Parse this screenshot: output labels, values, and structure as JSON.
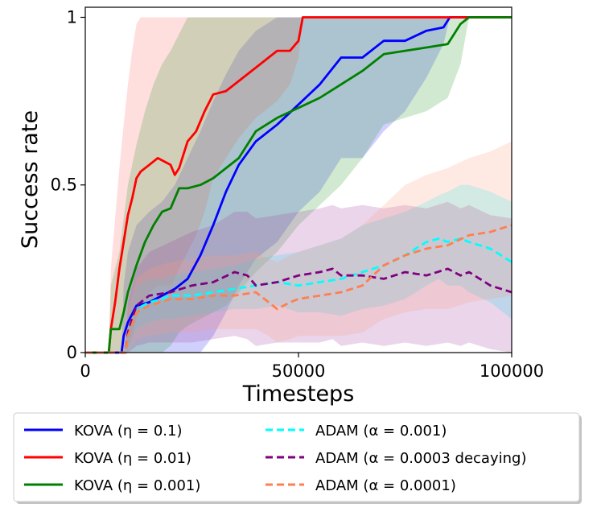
{
  "chart_data": {
    "type": "line",
    "title": "",
    "xlabel": "Timesteps",
    "ylabel": "Success rate",
    "xlim": [
      0,
      100000
    ],
    "ylim": [
      0,
      1.03
    ],
    "xticks": [
      0,
      50000,
      100000
    ],
    "xtick_labels": [
      "0",
      "50000",
      "100000"
    ],
    "yticks": [
      0,
      0.5,
      1
    ],
    "ytick_labels": [
      "0",
      "0.5",
      "1"
    ],
    "grid": false,
    "legend_position": "below",
    "series": [
      {
        "name": "KOVA (η = 0.1)",
        "style": "solid",
        "color": "#0000ff",
        "band_color": "#2a2af5",
        "x": [
          0,
          8500,
          9000,
          10000,
          12000,
          15000,
          18000,
          21000,
          24000,
          27000,
          30000,
          33000,
          36000,
          40000,
          45000,
          50000,
          55000,
          60000,
          65000,
          70000,
          75000,
          80000,
          84000,
          85500,
          88000,
          100000
        ],
        "y": [
          0,
          0,
          0.05,
          0.09,
          0.14,
          0.15,
          0.17,
          0.19,
          0.22,
          0.29,
          0.38,
          0.48,
          0.56,
          0.63,
          0.68,
          0.74,
          0.8,
          0.88,
          0.88,
          0.93,
          0.93,
          0.96,
          0.97,
          1.0,
          1.0,
          1.0
        ],
        "upper": [
          0,
          0,
          0.2,
          0.3,
          0.38,
          0.42,
          0.45,
          0.5,
          0.58,
          0.66,
          0.75,
          0.83,
          0.9,
          0.96,
          1.0,
          1.0,
          1.0,
          1.0,
          1.0,
          1.0,
          1.0,
          1.0,
          1.0,
          1.0,
          1.0,
          1.0
        ],
        "lower": [
          0,
          0,
          0,
          0,
          0,
          0,
          0,
          0,
          0,
          0,
          0.05,
          0.12,
          0.2,
          0.28,
          0.33,
          0.42,
          0.48,
          0.58,
          0.58,
          0.66,
          0.72,
          0.82,
          0.92,
          1.0,
          1.0,
          1.0
        ]
      },
      {
        "name": "KOVA (η = 0.01)",
        "style": "solid",
        "color": "#ff0000",
        "band_color": "#ff6b6b",
        "x": [
          0,
          5500,
          6000,
          7000,
          8000,
          9000,
          10000,
          11000,
          12000,
          13000,
          15000,
          17000,
          20000,
          21000,
          22000,
          24000,
          26000,
          28000,
          30000,
          33000,
          36000,
          40000,
          45000,
          48000,
          50000,
          51000,
          100000
        ],
        "y": [
          0,
          0,
          0.07,
          0.15,
          0.25,
          0.33,
          0.41,
          0.46,
          0.52,
          0.54,
          0.56,
          0.58,
          0.56,
          0.53,
          0.55,
          0.63,
          0.66,
          0.72,
          0.77,
          0.78,
          0.81,
          0.85,
          0.9,
          0.9,
          0.93,
          1.0,
          1.0
        ],
        "upper": [
          0,
          0,
          0.25,
          0.4,
          0.55,
          0.68,
          0.8,
          0.9,
          0.98,
          1.0,
          1.0,
          1.0,
          1.0,
          1.0,
          1.0,
          1.0,
          1.0,
          1.0,
          1.0,
          1.0,
          1.0,
          1.0,
          1.0,
          1.0,
          1.0,
          1.0,
          1.0
        ],
        "lower": [
          0,
          0,
          0,
          0,
          0,
          0,
          0.02,
          0.05,
          0.1,
          0.14,
          0.18,
          0.2,
          0.2,
          0.22,
          0.25,
          0.3,
          0.35,
          0.42,
          0.52,
          0.58,
          0.64,
          0.7,
          0.75,
          0.8,
          0.88,
          1.0,
          1.0
        ]
      },
      {
        "name": "KOVA (η = 0.001)",
        "style": "solid",
        "color": "#008000",
        "band_color": "#2e9a2e",
        "x": [
          0,
          5500,
          6000,
          8000,
          9000,
          10000,
          12000,
          14000,
          16000,
          18000,
          20000,
          22000,
          24000,
          27000,
          30000,
          33000,
          36000,
          40000,
          45000,
          50000,
          55000,
          60000,
          65000,
          70000,
          75000,
          80000,
          85000,
          88000,
          90000,
          100000
        ],
        "y": [
          0,
          0,
          0.07,
          0.07,
          0.12,
          0.18,
          0.26,
          0.33,
          0.38,
          0.42,
          0.43,
          0.49,
          0.49,
          0.5,
          0.52,
          0.55,
          0.58,
          0.66,
          0.7,
          0.73,
          0.76,
          0.8,
          0.84,
          0.89,
          0.9,
          0.91,
          0.92,
          0.98,
          1.0,
          1.0
        ],
        "upper": [
          0,
          0,
          0.2,
          0.3,
          0.4,
          0.5,
          0.62,
          0.72,
          0.8,
          0.86,
          0.9,
          0.95,
          1.0,
          1.0,
          1.0,
          1.0,
          1.0,
          1.0,
          1.0,
          1.0,
          1.0,
          1.0,
          1.0,
          1.0,
          1.0,
          1.0,
          1.0,
          1.0,
          1.0,
          1.0
        ],
        "lower": [
          0,
          0,
          0,
          0,
          0,
          0,
          0,
          0,
          0,
          0,
          0.02,
          0.06,
          0.08,
          0.1,
          0.12,
          0.14,
          0.18,
          0.24,
          0.3,
          0.38,
          0.44,
          0.5,
          0.58,
          0.68,
          0.7,
          0.72,
          0.76,
          0.86,
          1.0,
          1.0
        ]
      },
      {
        "name": "ADAM (α = 0.001)",
        "style": "dashed",
        "color": "#00ffff",
        "band_color": "#00ffff",
        "x": [
          0,
          9500,
          10000,
          12000,
          15000,
          18000,
          20000,
          25000,
          30000,
          35000,
          40000,
          45000,
          50000,
          55000,
          60000,
          65000,
          70000,
          75000,
          80000,
          83000,
          85000,
          88000,
          90000,
          95000,
          100000
        ],
        "y": [
          0,
          0,
          0.05,
          0.13,
          0.15,
          0.16,
          0.17,
          0.17,
          0.18,
          0.19,
          0.2,
          0.21,
          0.2,
          0.21,
          0.22,
          0.24,
          0.26,
          0.29,
          0.33,
          0.34,
          0.33,
          0.34,
          0.33,
          0.31,
          0.27
        ],
        "upper": [
          0,
          0,
          0.1,
          0.2,
          0.22,
          0.22,
          0.23,
          0.24,
          0.25,
          0.26,
          0.28,
          0.29,
          0.3,
          0.32,
          0.34,
          0.38,
          0.4,
          0.42,
          0.45,
          0.47,
          0.48,
          0.5,
          0.5,
          0.48,
          0.45
        ],
        "lower": [
          0,
          0,
          0,
          0.07,
          0.09,
          0.1,
          0.1,
          0.11,
          0.12,
          0.13,
          0.13,
          0.14,
          0.12,
          0.12,
          0.11,
          0.13,
          0.14,
          0.16,
          0.2,
          0.22,
          0.2,
          0.2,
          0.18,
          0.15,
          0.1
        ]
      },
      {
        "name": "ADAM (α = 0.0003 decaying)",
        "style": "dashed",
        "color": "#800080",
        "band_color": "#a040a0",
        "x": [
          0,
          9500,
          10000,
          12000,
          15000,
          20000,
          25000,
          30000,
          35000,
          38000,
          40000,
          45000,
          50000,
          55000,
          58000,
          60000,
          65000,
          70000,
          75000,
          80000,
          85000,
          88000,
          90000,
          95000,
          100000
        ],
        "y": [
          0,
          0,
          0.06,
          0.14,
          0.17,
          0.18,
          0.2,
          0.21,
          0.24,
          0.23,
          0.2,
          0.21,
          0.23,
          0.24,
          0.25,
          0.23,
          0.23,
          0.22,
          0.24,
          0.23,
          0.25,
          0.23,
          0.24,
          0.2,
          0.18
        ],
        "upper": [
          0,
          0,
          0.15,
          0.25,
          0.3,
          0.33,
          0.36,
          0.38,
          0.42,
          0.42,
          0.4,
          0.41,
          0.42,
          0.43,
          0.44,
          0.43,
          0.44,
          0.43,
          0.44,
          0.43,
          0.45,
          0.43,
          0.44,
          0.41,
          0.4
        ],
        "lower": [
          0,
          0,
          0,
          0.02,
          0.03,
          0.03,
          0.03,
          0.04,
          0.05,
          0.04,
          0.02,
          0.03,
          0.03,
          0.03,
          0.04,
          0.02,
          0.03,
          0.02,
          0.03,
          0.02,
          0.03,
          0.02,
          0.03,
          0.01,
          0.0
        ]
      },
      {
        "name": "ADAM (α = 0.0001)",
        "style": "dashed",
        "color": "#ff7f50",
        "band_color": "#ff9a80",
        "x": [
          0,
          9500,
          10000,
          12000,
          15000,
          20000,
          25000,
          30000,
          35000,
          40000,
          43000,
          45000,
          48000,
          50000,
          55000,
          60000,
          65000,
          70000,
          75000,
          80000,
          85000,
          90000,
          95000,
          100000
        ],
        "y": [
          0,
          0,
          0.05,
          0.12,
          0.14,
          0.16,
          0.16,
          0.17,
          0.17,
          0.18,
          0.15,
          0.13,
          0.15,
          0.16,
          0.17,
          0.18,
          0.2,
          0.26,
          0.29,
          0.31,
          0.32,
          0.35,
          0.36,
          0.38
        ],
        "upper": [
          0,
          0,
          0.12,
          0.22,
          0.25,
          0.27,
          0.28,
          0.29,
          0.29,
          0.3,
          0.28,
          0.27,
          0.29,
          0.3,
          0.32,
          0.34,
          0.38,
          0.44,
          0.5,
          0.53,
          0.55,
          0.58,
          0.6,
          0.63
        ],
        "lower": [
          0,
          0,
          0,
          0.04,
          0.05,
          0.06,
          0.06,
          0.07,
          0.07,
          0.07,
          0.05,
          0.03,
          0.04,
          0.05,
          0.05,
          0.05,
          0.06,
          0.1,
          0.12,
          0.13,
          0.13,
          0.15,
          0.16,
          0.17
        ]
      }
    ]
  }
}
